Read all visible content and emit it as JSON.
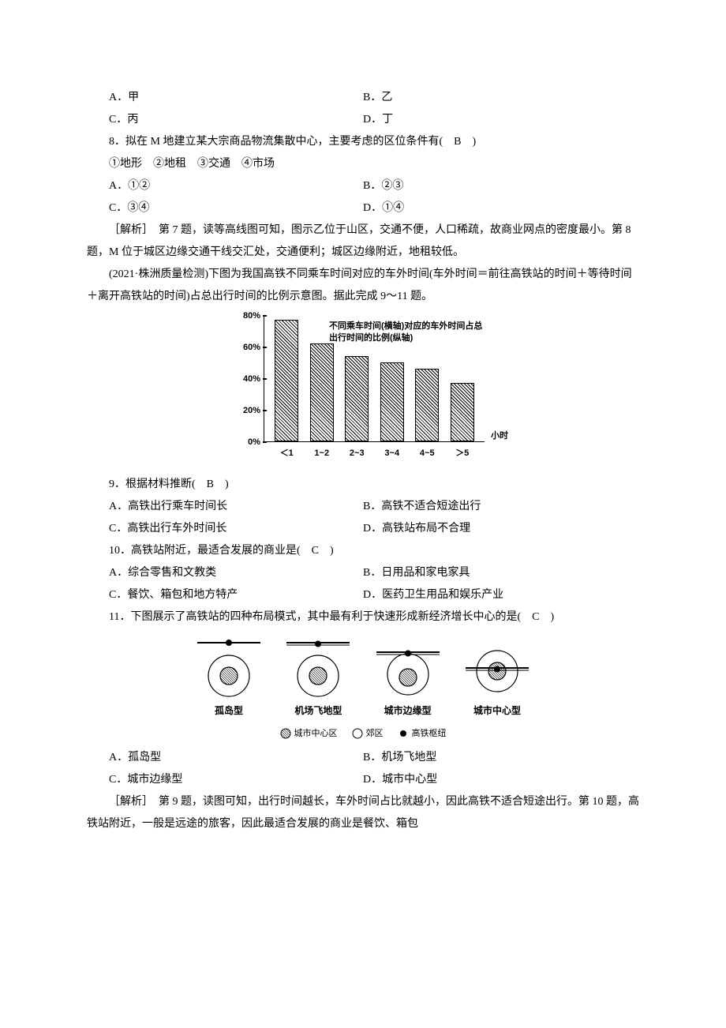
{
  "q7_options": {
    "a": "A．甲",
    "b": "B．乙",
    "c": "C．丙",
    "d": "D．丁"
  },
  "q8": {
    "stem": "8．拟在 M 地建立某大宗商品物流集散中心，主要考虑的区位条件有(　B　)",
    "sub": "①地形　②地租　③交通　④市场",
    "a": "A．①②",
    "b": "B．②③",
    "c": "C．③④",
    "d": "D．①④"
  },
  "explain1": "［解析］　第 7 题，读等高线图可知，图示乙位于山区，交通不便，人口稀疏，故商业网点的密度最小。第 8 题，M 位于城区边缘交通干线交汇处，交通便利；城区边缘附近，地租较低。",
  "passage2": "(2021·株洲质量检测)下图为我国高铁不同乘车时间对应的车外时间(车外时间＝前往高铁站的时间＋等待时间＋离开高铁站的时间)占总出行时间的比例示意图。据此完成 9～11 题。",
  "chart": {
    "legend_line1": "不同乘车时间(横轴)对应的车外时间占总",
    "legend_line2": "出行时间的比例(纵轴)",
    "y_ticks": [
      "0%",
      "20%",
      "40%",
      "60%",
      "80%"
    ],
    "x_labels": [
      "＜1",
      "1~2",
      "2~3",
      "3~4",
      "4~5",
      "＞5"
    ],
    "x_unit": "小时",
    "values": [
      77,
      62,
      54,
      50,
      46,
      37
    ],
    "ymax": 80,
    "bar_fill": "#ffffff",
    "bar_border": "#000000"
  },
  "q9": {
    "stem": "9．根据材料推断(　B　)",
    "a": "A．高铁出行乘车时间长",
    "b": "B．高铁不适合短途出行",
    "c": "C．高铁出行车外时间长",
    "d": "D．高铁站布局不合理"
  },
  "q10": {
    "stem": "10．高铁站附近，最适合发展的商业是(　C　)",
    "a": "A．综合零售和文教类",
    "b": "B．日用品和家电家具",
    "c": "C．餐饮、箱包和地方特产",
    "d": "D．医药卫生用品和娱乐产业"
  },
  "q11": {
    "stem": "11．下图展示了高铁站的四种布局模式，其中最有利于快速形成新经济增长中心的是(　C　)",
    "a": "A．孤岛型",
    "b": "B．机场飞地型",
    "c": "C．城市边缘型",
    "d": "D．城市中心型"
  },
  "diagram": {
    "labels": [
      "孤岛型",
      "机场飞地型",
      "城市边缘型",
      "城市中心型"
    ],
    "legend": {
      "center": "城市中心区",
      "suburb": "郊区",
      "hub": "高铁枢纽"
    }
  },
  "explain2": "［解析］　第 9 题，读图可知，出行时间越长，车外时间占比就越小，因此高铁不适合短途出行。第 10 题，高铁站附近，一般是远途的旅客，因此最适合发展的商业是餐饮、箱包"
}
